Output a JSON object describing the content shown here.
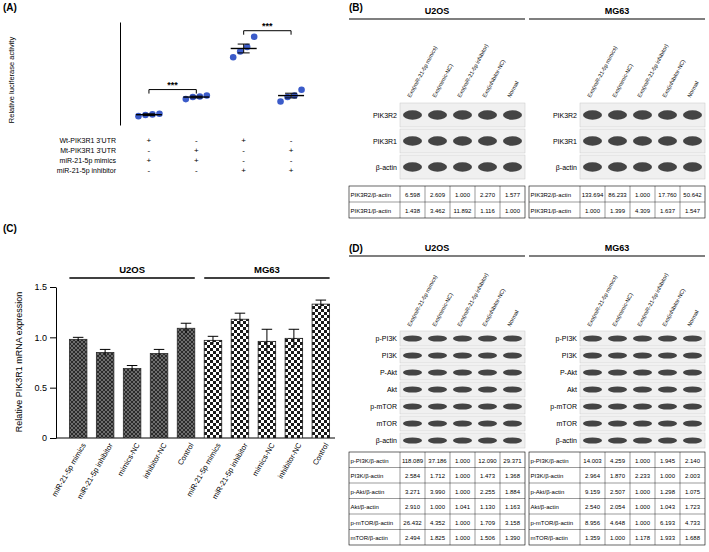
{
  "chart_data": [
    {
      "type": "dot",
      "title": "(A)",
      "y_label": "Relative luciferase activity",
      "categories": [
        null,
        null,
        null,
        null
      ],
      "values": [
        0.35,
        0.95,
        2.6,
        1.0
      ],
      "errors": [
        0.03,
        0.03,
        0.15,
        0.08
      ],
      "points": [
        [
          0.3,
          0.34,
          0.36,
          0.38
        ],
        [
          0.88,
          0.95,
          0.97,
          1.0
        ],
        [
          2.3,
          2.5,
          2.65,
          3.0
        ],
        [
          0.8,
          0.95,
          1.0,
          1.2
        ]
      ],
      "color": "#3b5bc9",
      "ylim": [
        0,
        3.5
      ],
      "tick_labels": false,
      "conditions": [
        {
          "label": "Wt-PIK3R1 3'UTR",
          "signs": [
            "+",
            "-",
            "+",
            "-"
          ]
        },
        {
          "label": "Mt-PIK3R1 3'UTR",
          "signs": [
            "-",
            "+",
            "-",
            "+"
          ]
        },
        {
          "label": "miR-21-5p mimics",
          "signs": [
            "+",
            "+",
            "-",
            "-"
          ]
        },
        {
          "label": "miR-21-5p inhibitor",
          "signs": [
            "-",
            "-",
            "+",
            "+"
          ]
        }
      ],
      "significance": [
        {
          "label": "***",
          "groups": [
            0,
            1
          ]
        },
        {
          "label": "***",
          "groups": [
            2,
            3
          ]
        }
      ]
    },
    {
      "type": "bar",
      "title": "(C)",
      "y_label": "Relative PIK3R1 mRNA expression",
      "categories": [
        "miR-21-5p mimics",
        "miR-21-5p inhibitor",
        "mimics-NC",
        "inhibitor-NC",
        "Control",
        "miR-21-5p mimics",
        "miR-21-5p inhibitor",
        "mimics-NC",
        "inhibitor-NC",
        "Control"
      ],
      "series": [
        {
          "name": "U2OS",
          "color": "#2b2b2b",
          "values": [
            0.98,
            0.85,
            0.69,
            0.84,
            1.09,
            null,
            null,
            null,
            null,
            null
          ],
          "errors": [
            0.02,
            0.03,
            0.03,
            0.04,
            0.05,
            null,
            null,
            null,
            null,
            null
          ]
        },
        {
          "name": "MG63",
          "color": "#1a1a1a",
          "values": [
            null,
            null,
            null,
            null,
            null,
            0.97,
            1.18,
            0.96,
            0.99,
            1.33
          ],
          "errors": [
            null,
            null,
            null,
            null,
            null,
            0.04,
            0.06,
            0.12,
            0.09,
            0.04
          ]
        }
      ],
      "ylim": [
        0,
        1.5
      ],
      "yticks": [
        0,
        0.5,
        {
          "value": 1,
          "label": "1.0"
        },
        1.5
      ]
    }
  ],
  "blot_panels": [
    {
      "label": "(B)",
      "blots": [
        {
          "cell_line": "U2OS",
          "lanes": [
            "Exo(miR-21-5p mimics)",
            "Exo(mimic-NC)",
            "Exo(miR-21-5p inhibitor)",
            "Exo(inhibitor-NC)",
            "Normal"
          ],
          "bands": [
            "PIK3R2",
            "PIK3R1",
            "β-actin"
          ],
          "table": {
            "rows": [
              {
                "label": "PIK3R2/β-actin",
                "cells": [
                  "6.598",
                  "2.609",
                  "1.000",
                  "2.270",
                  "1.577"
                ]
              },
              {
                "label": "PIK3R1/β-actin",
                "cells": [
                  "1.438",
                  "3.462",
                  "11.892",
                  "1.116",
                  "1.000"
                ]
              }
            ]
          }
        },
        {
          "cell_line": "MG63",
          "lanes": [
            "Exo(miR-21-5p mimics)",
            "Exo(mimic-NC)",
            "Exo(miR-21-5p inhibitor)",
            "Exo(inhibitor-NC)",
            "Normal"
          ],
          "bands": [
            "PIK3R2",
            "PIK3R1",
            "β-actin"
          ],
          "table": {
            "rows": [
              {
                "label": "PIK3R2/β-actin",
                "cells": [
                  "133.694",
                  "86.233",
                  "1.000",
                  "17.760",
                  "50.642"
                ]
              },
              {
                "label": "PIK3R1/β-actin",
                "cells": [
                  "1.000",
                  "1.399",
                  "4.309",
                  "1.637",
                  "1.547"
                ]
              }
            ]
          }
        }
      ]
    },
    {
      "label": "(D)",
      "blots": [
        {
          "cell_line": "U2OS",
          "lanes": [
            "Exo(miR-21-5p mimics)",
            "Exo(mimic-NC)",
            "Exo(miR-21-5p inhibitor)",
            "Exo(inhibitor-NC)",
            "Normal"
          ],
          "bands": [
            "p-PI3K",
            "PI3K",
            "P-Akt",
            "Akt",
            "p-mTOR",
            "mTOR",
            "β-actin"
          ],
          "table": {
            "rows": [
              {
                "label": "p-PI3K/β-actin",
                "cells": [
                  "118.089",
                  "37.186",
                  "1.000",
                  "12.090",
                  "29.371"
                ]
              },
              {
                "label": "PI3K/β-actin",
                "cells": [
                  "2.584",
                  "1.712",
                  "1.000",
                  "1.473",
                  "1.368"
                ]
              },
              {
                "label": "p-Akt/β-actin",
                "cells": [
                  "3.271",
                  "3.990",
                  "1.000",
                  "2.255",
                  "1.884"
                ]
              },
              {
                "label": "Akt/β-actin",
                "cells": [
                  "2.910",
                  "1.000",
                  "1.041",
                  "1.130",
                  "1.163"
                ]
              },
              {
                "label": "p-mTOR/β-actin",
                "cells": [
                  "26.432",
                  "4.352",
                  "1.000",
                  "1.709",
                  "3.158"
                ]
              },
              {
                "label": "mTOR/β-actin",
                "cells": [
                  "2.494",
                  "1.825",
                  "1.000",
                  "1.506",
                  "1.390"
                ]
              }
            ]
          }
        },
        {
          "cell_line": "MG63",
          "lanes": [
            "Exo(miR-21-5p mimics)",
            "Exo(mimic-NC)",
            "Exo(miR-21-5p inhibitor)",
            "Exo(inhibitor-NC)",
            "Normal"
          ],
          "bands": [
            "p-PI3K",
            "PI3K",
            "P-Akt",
            "Akt",
            "p-mTOR",
            "mTOR",
            "β-actin"
          ],
          "table": {
            "rows": [
              {
                "label": "p-PI3K/β-actin",
                "cells": [
                  "14.003",
                  "4.259",
                  "1.000",
                  "1.945",
                  "2.140"
                ]
              },
              {
                "label": "PI3K/β-actin",
                "cells": [
                  "2.964",
                  "1.870",
                  "2.233",
                  "1.000",
                  "2.003"
                ]
              },
              {
                "label": "p-Akt/β-actin",
                "cells": [
                  "9.159",
                  "2.507",
                  "1.000",
                  "1.298",
                  "1.075"
                ]
              },
              {
                "label": "Akt/β-actin",
                "cells": [
                  "2.540",
                  "2.054",
                  "1.000",
                  "1.043",
                  "1.723"
                ]
              },
              {
                "label": "p-mTOR/β-actin",
                "cells": [
                  "8.956",
                  "4.648",
                  "1.000",
                  "6.193",
                  "4.733"
                ]
              },
              {
                "label": "mTOR/β-actin",
                "cells": [
                  "1.359",
                  "1.000",
                  "1.178",
                  "1.933",
                  "1.688"
                ]
              }
            ]
          }
        }
      ]
    }
  ]
}
